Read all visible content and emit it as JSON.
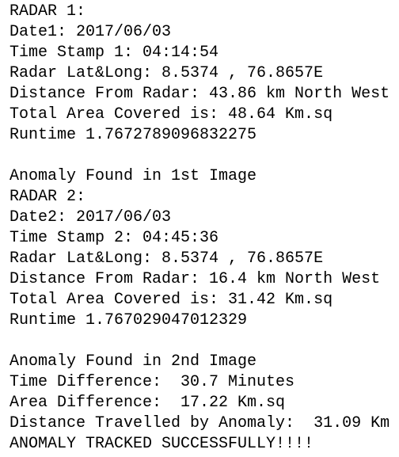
{
  "blocks": [
    [
      "RADAR 1:",
      "Date1: 2017/06/03",
      "Time Stamp 1: 04:14:54",
      "Radar Lat&Long: 8.5374 , 76.8657E",
      "Distance From Radar: 43.86 km North West",
      "Total Area Covered is: 48.64 Km.sq",
      "Runtime 1.7672789096832275"
    ],
    [
      "Anomaly Found in 1st Image",
      "RADAR 2:",
      "Date2: 2017/06/03",
      "Time Stamp 2: 04:45:36",
      "Radar Lat&Long: 8.5374 , 76.8657E",
      "Distance From Radar: 16.4 km North West",
      "Total Area Covered is: 31.42 Km.sq",
      "Runtime 1.767029047012329"
    ],
    [
      "Anomaly Found in 2nd Image",
      "Time Difference:  30.7 Minutes",
      "Area Difference:  17.22 Km.sq",
      "Distance Travelled by Anomaly:  31.09 Km",
      "ANOMALY TRACKED SUCCESSFULLY!!!!"
    ]
  ]
}
